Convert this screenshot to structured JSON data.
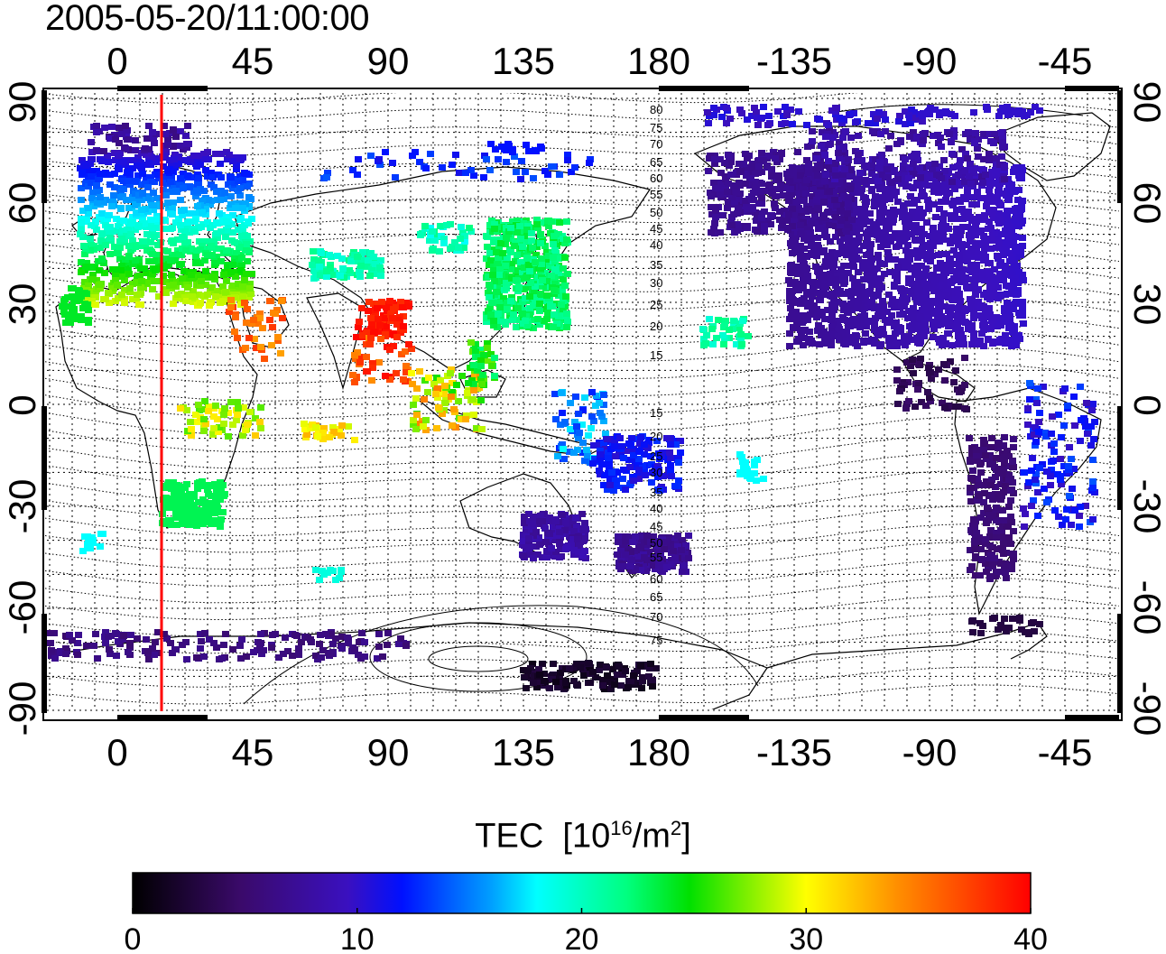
{
  "title": "2005-05-20/11:00:00",
  "x_ticks": [
    "0",
    "45",
    "90",
    "135",
    "180",
    "-135",
    "-90",
    "-45"
  ],
  "y_ticks": [
    "90",
    "60",
    "30",
    "0",
    "-30",
    "-60",
    "-90"
  ],
  "contour_labels_north": [
    "80",
    "75",
    "70",
    "65",
    "60",
    "55",
    "50",
    "45",
    "40",
    "35",
    "30",
    "25",
    "20",
    "15"
  ],
  "contour_labels_south": [
    "15",
    "20",
    "25",
    "30",
    "35",
    "40",
    "45",
    "50",
    "55",
    "60",
    "65",
    "70",
    "75"
  ],
  "colorbar": {
    "label_prefix": "TEC",
    "label_unit_open": "[10",
    "label_exp": "16",
    "label_mid": "/m",
    "label_exp2": "2",
    "label_close": "]",
    "ticks": [
      "0",
      "10",
      "20",
      "30",
      "40"
    ],
    "range": [
      0,
      40
    ]
  },
  "colors": {
    "marker_line": "#ff0000"
  }
}
